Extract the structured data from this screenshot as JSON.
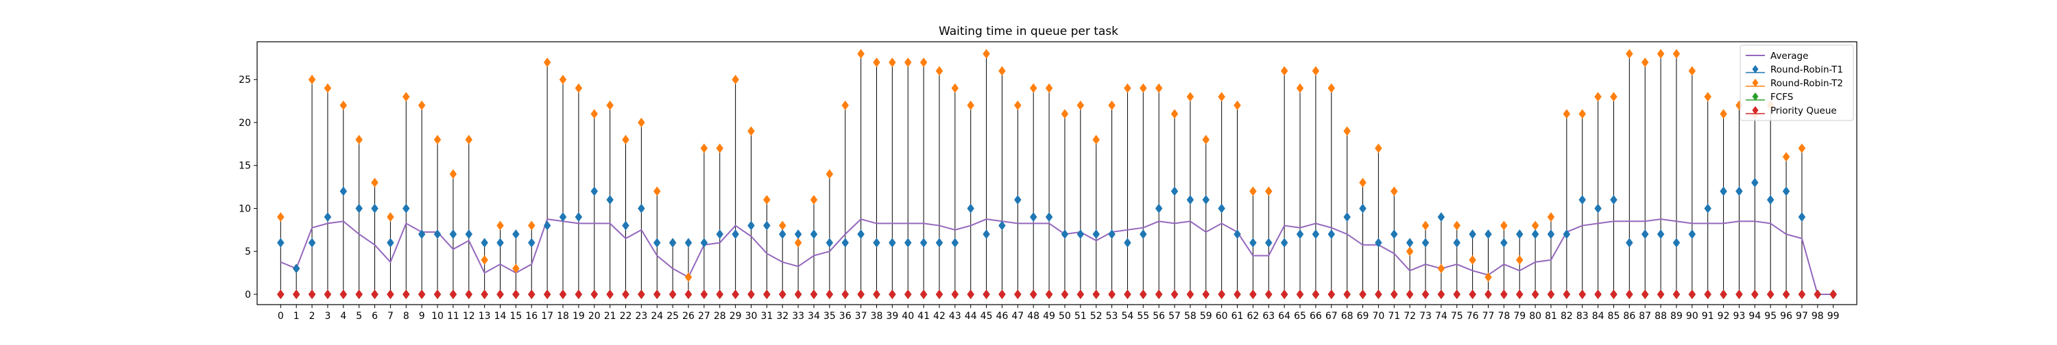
{
  "chart_data": {
    "type": "line",
    "title": "Waiting time in queue per task",
    "xlabel": "",
    "ylabel": "",
    "xlim": [
      -1.5,
      100.5
    ],
    "ylim": [
      -1.2,
      29.4
    ],
    "x": [
      0,
      1,
      2,
      3,
      4,
      5,
      6,
      7,
      8,
      9,
      10,
      11,
      12,
      13,
      14,
      15,
      16,
      17,
      18,
      19,
      20,
      21,
      22,
      23,
      24,
      25,
      26,
      27,
      28,
      29,
      30,
      31,
      32,
      33,
      34,
      35,
      36,
      37,
      38,
      39,
      40,
      41,
      42,
      43,
      44,
      45,
      46,
      47,
      48,
      49,
      50,
      51,
      52,
      53,
      54,
      55,
      56,
      57,
      58,
      59,
      60,
      61,
      62,
      63,
      64,
      65,
      66,
      67,
      68,
      69,
      70,
      71,
      72,
      73,
      74,
      75,
      76,
      77,
      78,
      79,
      80,
      81,
      82,
      83,
      84,
      85,
      86,
      87,
      88,
      89,
      90,
      91,
      92,
      93,
      94,
      95,
      96,
      97,
      98,
      99
    ],
    "yticks": [
      0,
      5,
      10,
      15,
      20,
      25
    ],
    "legend_position": "top-right",
    "colors": {
      "average": "#9467bd",
      "rr_t1": "#1f77b4",
      "rr_t2": "#ff7f0e",
      "fcfs": "#2ca02c",
      "priority": "#d62728",
      "stem": "#000000"
    },
    "series": [
      {
        "name": "Average",
        "style": "line",
        "values": [
          3.75,
          3,
          7.75,
          8.25,
          8.5,
          7,
          5.75,
          3.75,
          8.25,
          7.25,
          7.25,
          5.25,
          6.25,
          2.5,
          3.5,
          2.5,
          3.5,
          8.75,
          8.5,
          8.25,
          8.25,
          8.25,
          6.5,
          7.5,
          4.5,
          3,
          2,
          5.75,
          6,
          8,
          6.75,
          4.75,
          3.75,
          3.25,
          4.5,
          5,
          7,
          8.75,
          8.25,
          8.25,
          8.25,
          8.25,
          8,
          7.5,
          8,
          8.75,
          8.5,
          8.25,
          8.25,
          8.25,
          7,
          7.25,
          6.25,
          7.25,
          7.5,
          7.75,
          8.5,
          8.25,
          8.5,
          7.25,
          8.25,
          7.25,
          4.5,
          4.5,
          8,
          7.75,
          8.25,
          7.75,
          7,
          5.75,
          5.75,
          4.75,
          2.75,
          3.5,
          3,
          3.5,
          2.75,
          2.25,
          3.5,
          2.75,
          3.75,
          4,
          7.25,
          8,
          8.25,
          8.5,
          8.5,
          8.5,
          8.75,
          8.5,
          8.25,
          8.25,
          8.25,
          8.5,
          8.5,
          8.25,
          7,
          6.5,
          0,
          0
        ]
      },
      {
        "name": "Round-Robin-T1",
        "style": "marker",
        "values": [
          6,
          3,
          6,
          9,
          12,
          10,
          10,
          6,
          10,
          7,
          7,
          7,
          7,
          6,
          6,
          7,
          6,
          8,
          9,
          9,
          12,
          11,
          8,
          10,
          6,
          6,
          6,
          6,
          7,
          7,
          8,
          8,
          7,
          7,
          7,
          6,
          6,
          7,
          6,
          6,
          6,
          6,
          6,
          6,
          10,
          7,
          8,
          11,
          9,
          9,
          7,
          7,
          7,
          7,
          6,
          7,
          10,
          12,
          11,
          11,
          10,
          7,
          6,
          6,
          6,
          7,
          7,
          7,
          9,
          10,
          6,
          7,
          6,
          6,
          9,
          6,
          7,
          7,
          6,
          7,
          7,
          7,
          7,
          11,
          10,
          11,
          6,
          7,
          7,
          6,
          7,
          10,
          12,
          12,
          13,
          11,
          12,
          9,
          0,
          0
        ]
      },
      {
        "name": "Round-Robin-T2",
        "style": "marker",
        "values": [
          9,
          3,
          25,
          24,
          22,
          18,
          13,
          9,
          23,
          22,
          18,
          14,
          18,
          4,
          8,
          3,
          8,
          27,
          25,
          24,
          21,
          22,
          18,
          20,
          12,
          6,
          2,
          17,
          17,
          25,
          19,
          11,
          8,
          6,
          11,
          14,
          22,
          28,
          27,
          27,
          27,
          27,
          26,
          24,
          22,
          28,
          26,
          22,
          24,
          24,
          21,
          22,
          18,
          22,
          24,
          24,
          24,
          21,
          23,
          18,
          23,
          22,
          12,
          12,
          26,
          24,
          26,
          24,
          19,
          13,
          17,
          12,
          5,
          8,
          3,
          8,
          4,
          2,
          8,
          4,
          8,
          9,
          21,
          21,
          23,
          23,
          28,
          27,
          28,
          28,
          26,
          23,
          21,
          22,
          21,
          22,
          16,
          17,
          0,
          0
        ]
      },
      {
        "name": "FCFS",
        "style": "marker",
        "values": [
          0,
          0,
          0,
          0,
          0,
          0,
          0,
          0,
          0,
          0,
          0,
          0,
          0,
          0,
          0,
          0,
          0,
          0,
          0,
          0,
          0,
          0,
          0,
          0,
          0,
          0,
          0,
          0,
          0,
          0,
          0,
          0,
          0,
          0,
          0,
          0,
          0,
          0,
          0,
          0,
          0,
          0,
          0,
          0,
          0,
          0,
          0,
          0,
          0,
          0,
          0,
          0,
          0,
          0,
          0,
          0,
          0,
          0,
          0,
          0,
          0,
          0,
          0,
          0,
          0,
          0,
          0,
          0,
          0,
          0,
          0,
          0,
          0,
          0,
          0,
          0,
          0,
          0,
          0,
          0,
          0,
          0,
          0,
          0,
          0,
          0,
          0,
          0,
          0,
          0,
          0,
          0,
          0,
          0,
          0,
          0,
          0,
          0,
          0,
          0
        ]
      },
      {
        "name": "Priority Queue",
        "style": "marker",
        "values": [
          0,
          0,
          0,
          0,
          0,
          0,
          0,
          0,
          0,
          0,
          0,
          0,
          0,
          0,
          0,
          0,
          0,
          0,
          0,
          0,
          0,
          0,
          0,
          0,
          0,
          0,
          0,
          0,
          0,
          0,
          0,
          0,
          0,
          0,
          0,
          0,
          0,
          0,
          0,
          0,
          0,
          0,
          0,
          0,
          0,
          0,
          0,
          0,
          0,
          0,
          0,
          0,
          0,
          0,
          0,
          0,
          0,
          0,
          0,
          0,
          0,
          0,
          0,
          0,
          0,
          0,
          0,
          0,
          0,
          0,
          0,
          0,
          0,
          0,
          0,
          0,
          0,
          0,
          0,
          0,
          0,
          0,
          0,
          0,
          0,
          0,
          0,
          0,
          0,
          0,
          0,
          0,
          0,
          0,
          0,
          0,
          0,
          0,
          0,
          0
        ]
      }
    ]
  }
}
